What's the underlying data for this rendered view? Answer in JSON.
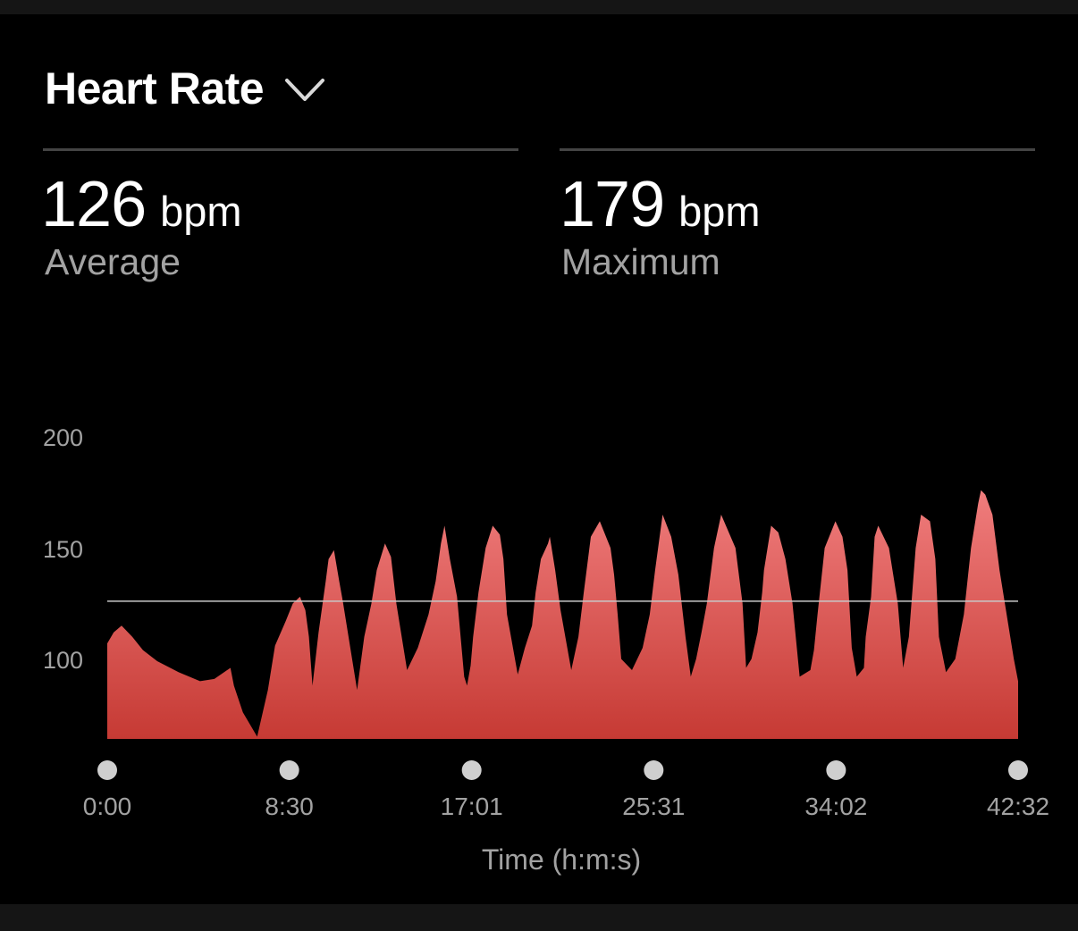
{
  "header": {
    "title": "Heart Rate",
    "dropdown_icon": "chevron-down-icon"
  },
  "stats": {
    "average": {
      "value": "126",
      "unit": "bpm",
      "label": "Average"
    },
    "maximum": {
      "value": "179",
      "unit": "bpm",
      "label": "Maximum"
    }
  },
  "colors": {
    "background": "#000000",
    "fill_top": "#f07d7d",
    "fill_bottom": "#c63a34",
    "average_line": "#c8c8c8",
    "tick_dot": "#cfcfcf"
  },
  "chart_data": {
    "type": "area",
    "title": "",
    "xlabel": "Time (h:m:s)",
    "ylabel": "",
    "x_unit": "seconds",
    "xlim": [
      0,
      2552
    ],
    "ylim": [
      64,
      200
    ],
    "y_ticks": [
      100,
      150,
      200
    ],
    "x_ticks": [
      {
        "label": "0:00",
        "value": 0
      },
      {
        "label": "8:30",
        "value": 510
      },
      {
        "label": "17:01",
        "value": 1021
      },
      {
        "label": "25:31",
        "value": 1531
      },
      {
        "label": "34:02",
        "value": 2042
      },
      {
        "label": "42:32",
        "value": 2552
      }
    ],
    "reference_line": {
      "name": "Average",
      "y": 126
    },
    "series": [
      {
        "name": "",
        "x": [
          0,
          18,
          40,
          70,
          100,
          140,
          200,
          260,
          300,
          345,
          355,
          380,
          420,
          450,
          470,
          500,
          520,
          540,
          555,
          565,
          575,
          592,
          612,
          620,
          635,
          650,
          660,
          700,
          720,
          740,
          755,
          778,
          795,
          810,
          840,
          870,
          900,
          920,
          935,
          945,
          960,
          980,
          1000,
          1008,
          1018,
          1025,
          1040,
          1060,
          1080,
          1100,
          1110,
          1120,
          1150,
          1170,
          1190,
          1200,
          1215,
          1235,
          1240,
          1255,
          1270,
          1300,
          1320,
          1335,
          1355,
          1380,
          1410,
          1420,
          1430,
          1440,
          1470,
          1500,
          1520,
          1535,
          1556,
          1580,
          1600,
          1620,
          1635,
          1650,
          1665,
          1680,
          1700,
          1720,
          1760,
          1780,
          1790,
          1805,
          1822,
          1835,
          1840,
          1860,
          1880,
          1900,
          1920,
          1940,
          1970,
          1980,
          1990,
          2010,
          2040,
          2060,
          2074,
          2086,
          2100,
          2120,
          2125,
          2140,
          2150,
          2160,
          2190,
          2215,
          2230,
          2246,
          2265,
          2280,
          2305,
          2320,
          2330,
          2350,
          2376,
          2400,
          2420,
          2440,
          2448,
          2460,
          2480,
          2500,
          2530,
          2540,
          2552
        ],
        "y": [
          107,
          112,
          115,
          110,
          104,
          99,
          94,
          90,
          91,
          96,
          88,
          76,
          65,
          86,
          106,
          117,
          125,
          128,
          122,
          110,
          88,
          112,
          135,
          145,
          149,
          135,
          126,
          86,
          110,
          125,
          140,
          152,
          146,
          125,
          95,
          105,
          120,
          135,
          152,
          160,
          145,
          128,
          92,
          88,
          97,
          110,
          130,
          150,
          160,
          156,
          145,
          120,
          93,
          105,
          115,
          130,
          145,
          152,
          155,
          140,
          122,
          95,
          110,
          130,
          155,
          162,
          150,
          138,
          120,
          100,
          95,
          105,
          120,
          140,
          165,
          155,
          138,
          110,
          92,
          100,
          112,
          125,
          150,
          165,
          150,
          125,
          96,
          100,
          112,
          130,
          140,
          160,
          157,
          145,
          125,
          92,
          95,
          104,
          120,
          150,
          162,
          155,
          140,
          105,
          92,
          96,
          110,
          128,
          155,
          160,
          150,
          125,
          96,
          110,
          150,
          165,
          162,
          145,
          110,
          94,
          100,
          120,
          150,
          170,
          176,
          174,
          165,
          140,
          110,
          100,
          90
        ]
      }
    ]
  },
  "axis_labels": {
    "y_tick_labels": [
      "200",
      "150",
      "100"
    ]
  }
}
